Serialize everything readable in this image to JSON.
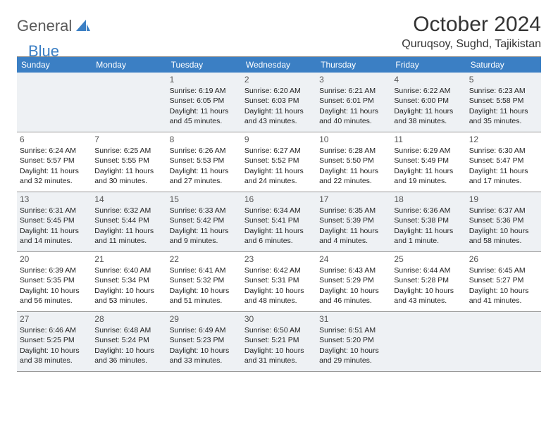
{
  "logo": {
    "general": "General",
    "blue": "Blue"
  },
  "title": "October 2024",
  "location": "Quruqsoy, Sughd, Tajikistan",
  "colors": {
    "header_bg": "#3b7fc4",
    "header_text": "#ffffff",
    "alt_row_bg": "#eef1f4",
    "border": "#999999",
    "logo_gray": "#5a5a5a",
    "logo_blue": "#3b7fc4"
  },
  "typography": {
    "title_fontsize": 30,
    "location_fontsize": 16,
    "weekday_fontsize": 12,
    "daynum_fontsize": 12,
    "body_fontsize": 10.5
  },
  "weekdays": [
    "Sunday",
    "Monday",
    "Tuesday",
    "Wednesday",
    "Thursday",
    "Friday",
    "Saturday"
  ],
  "weeks": [
    [
      null,
      null,
      {
        "n": "1",
        "sr": "Sunrise: 6:19 AM",
        "ss": "Sunset: 6:05 PM",
        "dl1": "Daylight: 11 hours",
        "dl2": "and 45 minutes."
      },
      {
        "n": "2",
        "sr": "Sunrise: 6:20 AM",
        "ss": "Sunset: 6:03 PM",
        "dl1": "Daylight: 11 hours",
        "dl2": "and 43 minutes."
      },
      {
        "n": "3",
        "sr": "Sunrise: 6:21 AM",
        "ss": "Sunset: 6:01 PM",
        "dl1": "Daylight: 11 hours",
        "dl2": "and 40 minutes."
      },
      {
        "n": "4",
        "sr": "Sunrise: 6:22 AM",
        "ss": "Sunset: 6:00 PM",
        "dl1": "Daylight: 11 hours",
        "dl2": "and 38 minutes."
      },
      {
        "n": "5",
        "sr": "Sunrise: 6:23 AM",
        "ss": "Sunset: 5:58 PM",
        "dl1": "Daylight: 11 hours",
        "dl2": "and 35 minutes."
      }
    ],
    [
      {
        "n": "6",
        "sr": "Sunrise: 6:24 AM",
        "ss": "Sunset: 5:57 PM",
        "dl1": "Daylight: 11 hours",
        "dl2": "and 32 minutes."
      },
      {
        "n": "7",
        "sr": "Sunrise: 6:25 AM",
        "ss": "Sunset: 5:55 PM",
        "dl1": "Daylight: 11 hours",
        "dl2": "and 30 minutes."
      },
      {
        "n": "8",
        "sr": "Sunrise: 6:26 AM",
        "ss": "Sunset: 5:53 PM",
        "dl1": "Daylight: 11 hours",
        "dl2": "and 27 minutes."
      },
      {
        "n": "9",
        "sr": "Sunrise: 6:27 AM",
        "ss": "Sunset: 5:52 PM",
        "dl1": "Daylight: 11 hours",
        "dl2": "and 24 minutes."
      },
      {
        "n": "10",
        "sr": "Sunrise: 6:28 AM",
        "ss": "Sunset: 5:50 PM",
        "dl1": "Daylight: 11 hours",
        "dl2": "and 22 minutes."
      },
      {
        "n": "11",
        "sr": "Sunrise: 6:29 AM",
        "ss": "Sunset: 5:49 PM",
        "dl1": "Daylight: 11 hours",
        "dl2": "and 19 minutes."
      },
      {
        "n": "12",
        "sr": "Sunrise: 6:30 AM",
        "ss": "Sunset: 5:47 PM",
        "dl1": "Daylight: 11 hours",
        "dl2": "and 17 minutes."
      }
    ],
    [
      {
        "n": "13",
        "sr": "Sunrise: 6:31 AM",
        "ss": "Sunset: 5:45 PM",
        "dl1": "Daylight: 11 hours",
        "dl2": "and 14 minutes."
      },
      {
        "n": "14",
        "sr": "Sunrise: 6:32 AM",
        "ss": "Sunset: 5:44 PM",
        "dl1": "Daylight: 11 hours",
        "dl2": "and 11 minutes."
      },
      {
        "n": "15",
        "sr": "Sunrise: 6:33 AM",
        "ss": "Sunset: 5:42 PM",
        "dl1": "Daylight: 11 hours",
        "dl2": "and 9 minutes."
      },
      {
        "n": "16",
        "sr": "Sunrise: 6:34 AM",
        "ss": "Sunset: 5:41 PM",
        "dl1": "Daylight: 11 hours",
        "dl2": "and 6 minutes."
      },
      {
        "n": "17",
        "sr": "Sunrise: 6:35 AM",
        "ss": "Sunset: 5:39 PM",
        "dl1": "Daylight: 11 hours",
        "dl2": "and 4 minutes."
      },
      {
        "n": "18",
        "sr": "Sunrise: 6:36 AM",
        "ss": "Sunset: 5:38 PM",
        "dl1": "Daylight: 11 hours",
        "dl2": "and 1 minute."
      },
      {
        "n": "19",
        "sr": "Sunrise: 6:37 AM",
        "ss": "Sunset: 5:36 PM",
        "dl1": "Daylight: 10 hours",
        "dl2": "and 58 minutes."
      }
    ],
    [
      {
        "n": "20",
        "sr": "Sunrise: 6:39 AM",
        "ss": "Sunset: 5:35 PM",
        "dl1": "Daylight: 10 hours",
        "dl2": "and 56 minutes."
      },
      {
        "n": "21",
        "sr": "Sunrise: 6:40 AM",
        "ss": "Sunset: 5:34 PM",
        "dl1": "Daylight: 10 hours",
        "dl2": "and 53 minutes."
      },
      {
        "n": "22",
        "sr": "Sunrise: 6:41 AM",
        "ss": "Sunset: 5:32 PM",
        "dl1": "Daylight: 10 hours",
        "dl2": "and 51 minutes."
      },
      {
        "n": "23",
        "sr": "Sunrise: 6:42 AM",
        "ss": "Sunset: 5:31 PM",
        "dl1": "Daylight: 10 hours",
        "dl2": "and 48 minutes."
      },
      {
        "n": "24",
        "sr": "Sunrise: 6:43 AM",
        "ss": "Sunset: 5:29 PM",
        "dl1": "Daylight: 10 hours",
        "dl2": "and 46 minutes."
      },
      {
        "n": "25",
        "sr": "Sunrise: 6:44 AM",
        "ss": "Sunset: 5:28 PM",
        "dl1": "Daylight: 10 hours",
        "dl2": "and 43 minutes."
      },
      {
        "n": "26",
        "sr": "Sunrise: 6:45 AM",
        "ss": "Sunset: 5:27 PM",
        "dl1": "Daylight: 10 hours",
        "dl2": "and 41 minutes."
      }
    ],
    [
      {
        "n": "27",
        "sr": "Sunrise: 6:46 AM",
        "ss": "Sunset: 5:25 PM",
        "dl1": "Daylight: 10 hours",
        "dl2": "and 38 minutes."
      },
      {
        "n": "28",
        "sr": "Sunrise: 6:48 AM",
        "ss": "Sunset: 5:24 PM",
        "dl1": "Daylight: 10 hours",
        "dl2": "and 36 minutes."
      },
      {
        "n": "29",
        "sr": "Sunrise: 6:49 AM",
        "ss": "Sunset: 5:23 PM",
        "dl1": "Daylight: 10 hours",
        "dl2": "and 33 minutes."
      },
      {
        "n": "30",
        "sr": "Sunrise: 6:50 AM",
        "ss": "Sunset: 5:21 PM",
        "dl1": "Daylight: 10 hours",
        "dl2": "and 31 minutes."
      },
      {
        "n": "31",
        "sr": "Sunrise: 6:51 AM",
        "ss": "Sunset: 5:20 PM",
        "dl1": "Daylight: 10 hours",
        "dl2": "and 29 minutes."
      },
      null,
      null
    ]
  ]
}
